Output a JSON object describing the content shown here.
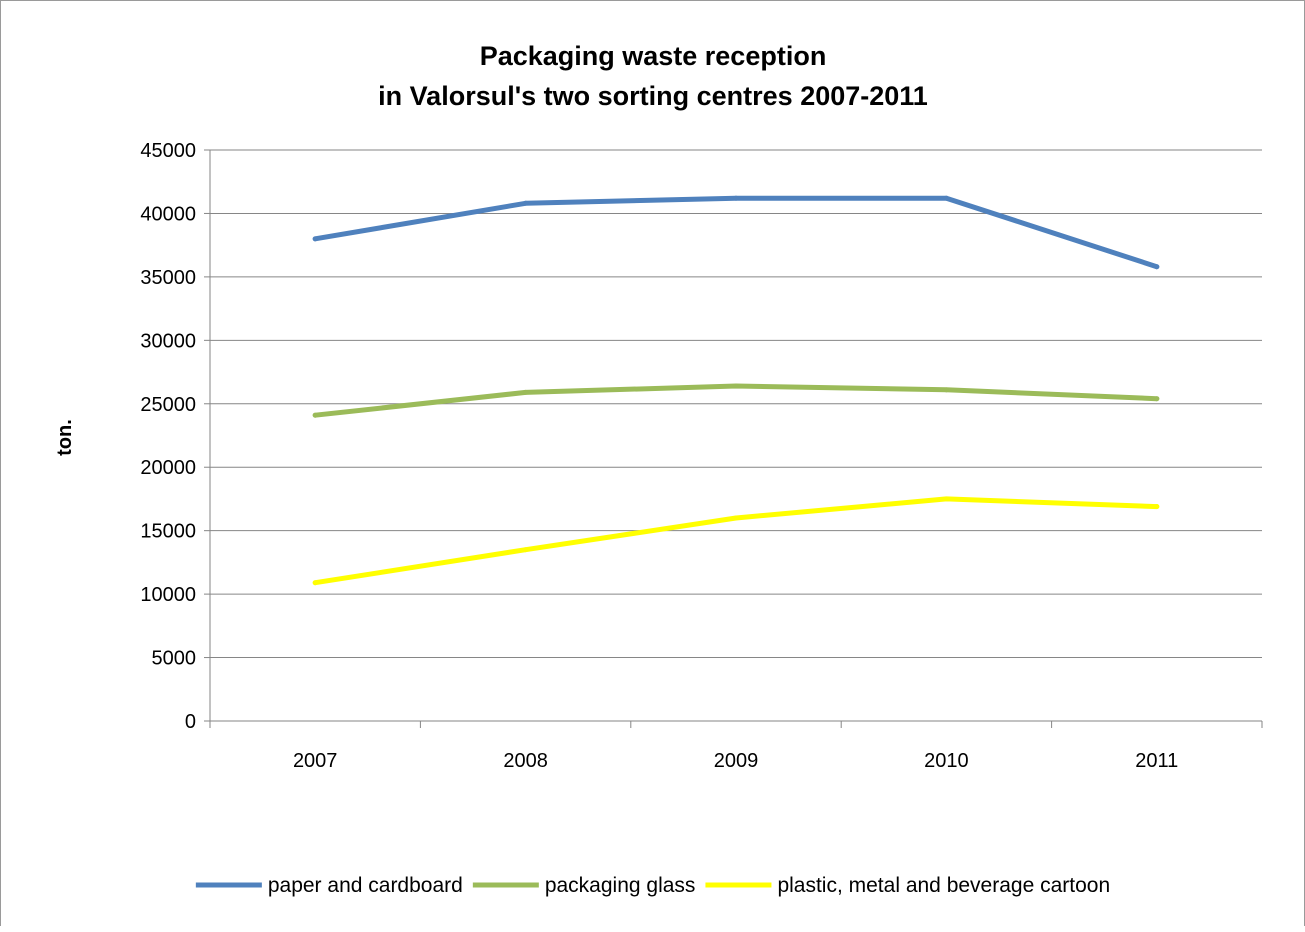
{
  "chart_data": {
    "type": "line",
    "title_lines": [
      "Packaging waste reception",
      "in Valorsul's two sorting centres  2007-2011"
    ],
    "xlabel": "",
    "ylabel": "ton.",
    "categories": [
      "2007",
      "2008",
      "2009",
      "2010",
      "2011"
    ],
    "ylim": [
      0,
      45000
    ],
    "yticks": [
      0,
      5000,
      10000,
      15000,
      20000,
      25000,
      30000,
      35000,
      40000,
      45000
    ],
    "grid": true,
    "legend_position": "bottom",
    "series": [
      {
        "name": "paper and cardboard",
        "color": "#4f81bd",
        "values": [
          38000,
          40800,
          41200,
          41200,
          35800
        ]
      },
      {
        "name": "packaging glass",
        "color": "#9bbb59",
        "values": [
          24100,
          25900,
          26400,
          26100,
          25400
        ]
      },
      {
        "name": "plastic, metal and beverage cartoon",
        "color": "#ffff00",
        "values": [
          10900,
          13500,
          16000,
          17500,
          16900
        ]
      }
    ]
  }
}
